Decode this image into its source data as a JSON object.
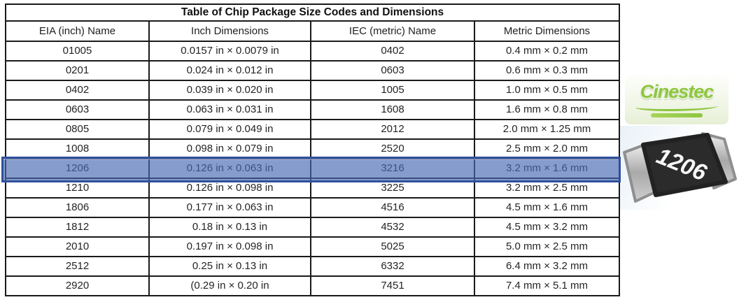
{
  "table": {
    "title": "Table of Chip Package Size Codes and Dimensions",
    "columns": [
      "EIA (inch) Name",
      "Inch Dimensions",
      "IEC (metric) Name",
      "Metric Dimensions"
    ],
    "rows": [
      [
        "01005",
        "0.0157 in × 0.0079 in",
        "0402",
        "0.4 mm × 0.2 mm"
      ],
      [
        "0201",
        "0.024 in × 0.012 in",
        "0603",
        "0.6 mm × 0.3 mm"
      ],
      [
        "0402",
        "0.039 in × 0.020 in",
        "1005",
        "1.0 mm × 0.5 mm"
      ],
      [
        "0603",
        "0.063 in × 0.031 in",
        "1608",
        "1.6 mm × 0.8 mm"
      ],
      [
        "0805",
        "0.079 in × 0.049 in",
        "2012",
        "2.0 mm × 1.25 mm"
      ],
      [
        "1008",
        "0.098 in × 0.079 in",
        "2520",
        "2.5 mm × 2.0 mm"
      ],
      [
        "1206",
        "0.126 in × 0.063 in",
        "3216",
        "3.2 mm × 1.6 mm"
      ],
      [
        "1210",
        "0.126 in × 0.098 in",
        "3225",
        "3.2 mm × 2.5 mm"
      ],
      [
        "1806",
        "0.177 in × 0.063 in",
        "4516",
        "4.5 mm × 1.6 mm"
      ],
      [
        "1812",
        "0.18 in × 0.13 in",
        "4532",
        "4.5 mm × 3.2 mm"
      ],
      [
        "2010",
        "0.197 in × 0.098 in",
        "5025",
        "5.0 mm × 2.5 mm"
      ],
      [
        "2512",
        "0.25 in × 0.13 in",
        "6332",
        "6.4 mm × 3.2 mm"
      ],
      [
        "2920",
        "(0.29 in × 0.20 in",
        "7451",
        "7.4 mm × 5.1 mm"
      ]
    ],
    "highlighted_row_index": 6,
    "highlight": {
      "fill_rgba": "rgba(72,105,177,0.66)",
      "border": "#30509c"
    },
    "border_color": "#1a1a1a"
  },
  "logo": {
    "text": "Cinestec",
    "color": "#8dc63f"
  },
  "chip_photo": {
    "label": "1206",
    "body_color": "#2b2b2b",
    "cap_color": "#b9b9b9",
    "cap_color_light": "#e4e4e4",
    "label_color": "#f7f7f7"
  }
}
